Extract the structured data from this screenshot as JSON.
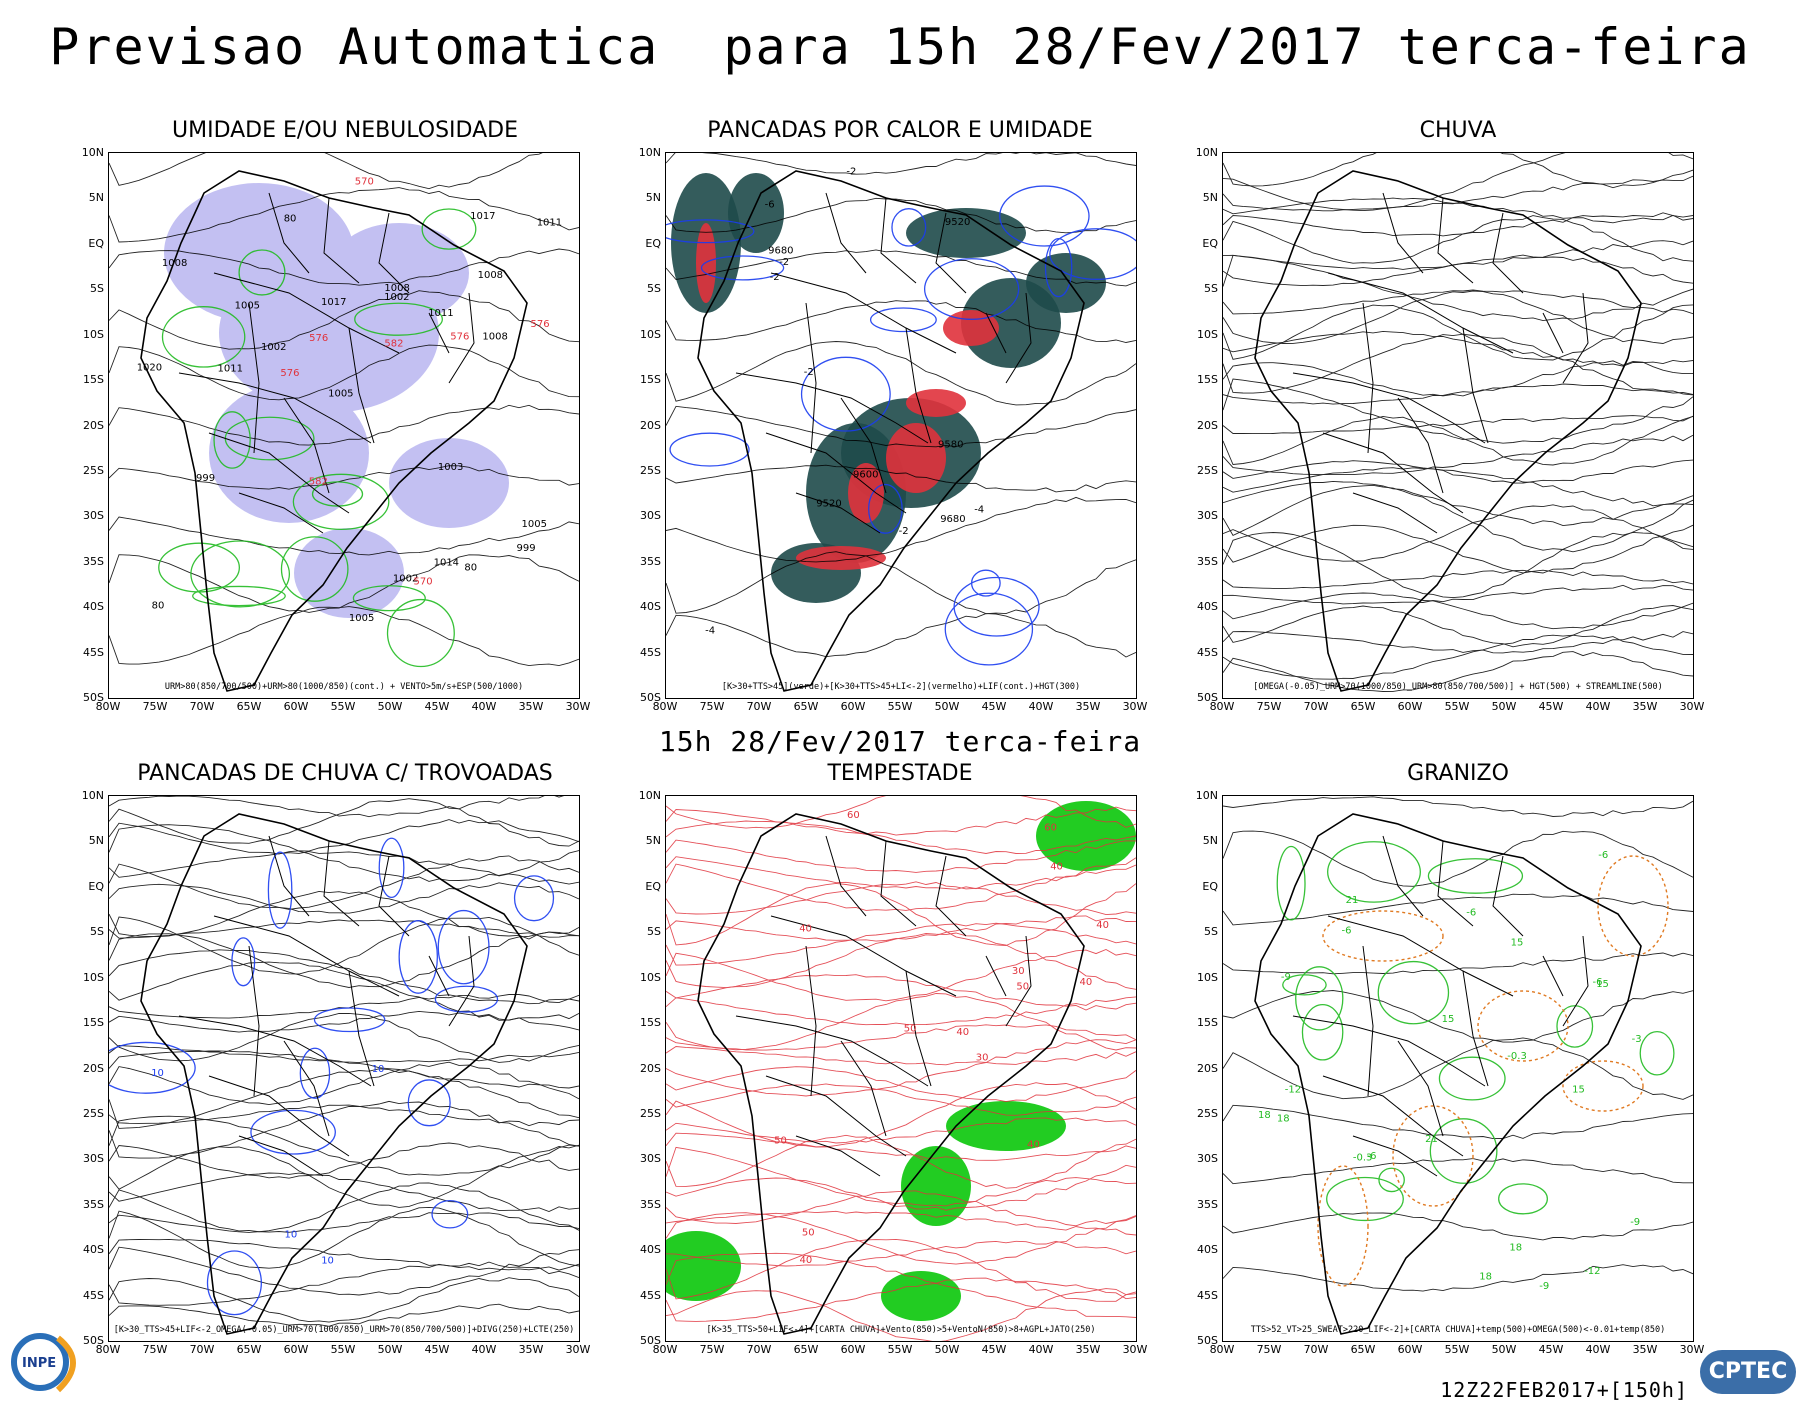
{
  "header": {
    "title": "Previsao Automatica  para 15h 28/Fev/2017 terca-feira"
  },
  "mid_date": "15h 28/Fev/2017 terca-feira",
  "run_label": "12Z22FEB2017+[150h]",
  "lat_labels": [
    "10N",
    "5N",
    "EQ",
    "5S",
    "10S",
    "15S",
    "20S",
    "25S",
    "30S",
    "35S",
    "40S",
    "45S",
    "50S"
  ],
  "lon_labels": [
    "80W",
    "75W",
    "70W",
    "65W",
    "60W",
    "55W",
    "50W",
    "45W",
    "40W",
    "35W",
    "30W"
  ],
  "panels": [
    {
      "title": "UMIDADE E/OU NEBULOSIDADE",
      "caption": "URM>80(850/700/500)+URM>80(1000/850)(cont.) + VENTO>5m/s+ESP(500/1000)",
      "labels": [
        "1008",
        "1011",
        "576",
        "1008",
        "1008",
        "582",
        "1005",
        "1002",
        "1005",
        "576",
        "1003",
        "1011",
        "1008",
        "1014",
        "1017",
        "1020",
        "999",
        "582",
        "1002",
        "570",
        "576",
        "1011",
        "1002",
        "1005",
        "1017",
        "999",
        "1005",
        "80",
        "570",
        "576",
        "80",
        "80"
      ]
    },
    {
      "title": "PANCADAS POR CALOR E UMIDADE",
      "caption": "[K>30+TTS>45](verde)+[K>30+TTS>45+LI<-2](vermelho)+LIF(cont.)+HGT(300)",
      "labels": [
        "9680",
        "9680",
        "9520",
        "9600",
        "9520",
        "-2",
        "-2",
        "-2",
        "-4",
        "-2",
        "-6",
        "-2",
        "-4",
        "9580"
      ]
    },
    {
      "title": "CHUVA",
      "caption": "[OMEGA(-0.05)_URM>70(1000/850)_URM>80(850/700/500)] + HGT(500) + STREAMLINE(500)",
      "labels": []
    },
    {
      "title": "PANCADAS DE CHUVA C/ TROVOADAS",
      "caption": "[K>30_TTS>45+LIF<-2_OMEGA(-0.05)_URM>70(1000/850)_URM>70(850/700/500)]+DIVG(250)+LCTE(250)",
      "labels": [
        "10",
        "10",
        "10",
        "10"
      ]
    },
    {
      "title": "TEMPESTADE",
      "caption": "[K>35_TTS>50+LIF<-4]+[CARTA CHUVA]+Vento(850)>5+VentoN(850)>8+AGPL+JATO(250)",
      "labels": [
        "50",
        "40",
        "40",
        "50",
        "30",
        "40",
        "40",
        "30",
        "50",
        "40",
        "60",
        "50",
        "40",
        "40",
        "60"
      ]
    },
    {
      "title": "GRANIZO",
      "caption": "TTS>52_VT>25_SWEAT>220_LIF<-2]+[CARTA CHUVA]+temp(500)+OMEGA(500)<-0.01+temp(850)",
      "labels": [
        "15",
        "18",
        "-6",
        "-6",
        "-0.3",
        "-0.3",
        "18",
        "21",
        "15",
        "-6",
        "-9",
        "-9",
        "-12",
        "-12",
        "15",
        "18",
        "21",
        "-3",
        "-6",
        "-9",
        "15",
        "18",
        "-6"
      ]
    }
  ],
  "colors": {
    "green": "#22bb22",
    "red": "#e0323c",
    "blue": "#1a3cf0",
    "teal": "#1e4a4a",
    "lavender": "#b9b6f0",
    "orange": "#e07a22",
    "bright_green": "#22cc22"
  },
  "logos": {
    "left": "INPE",
    "right": "CPTEC"
  }
}
